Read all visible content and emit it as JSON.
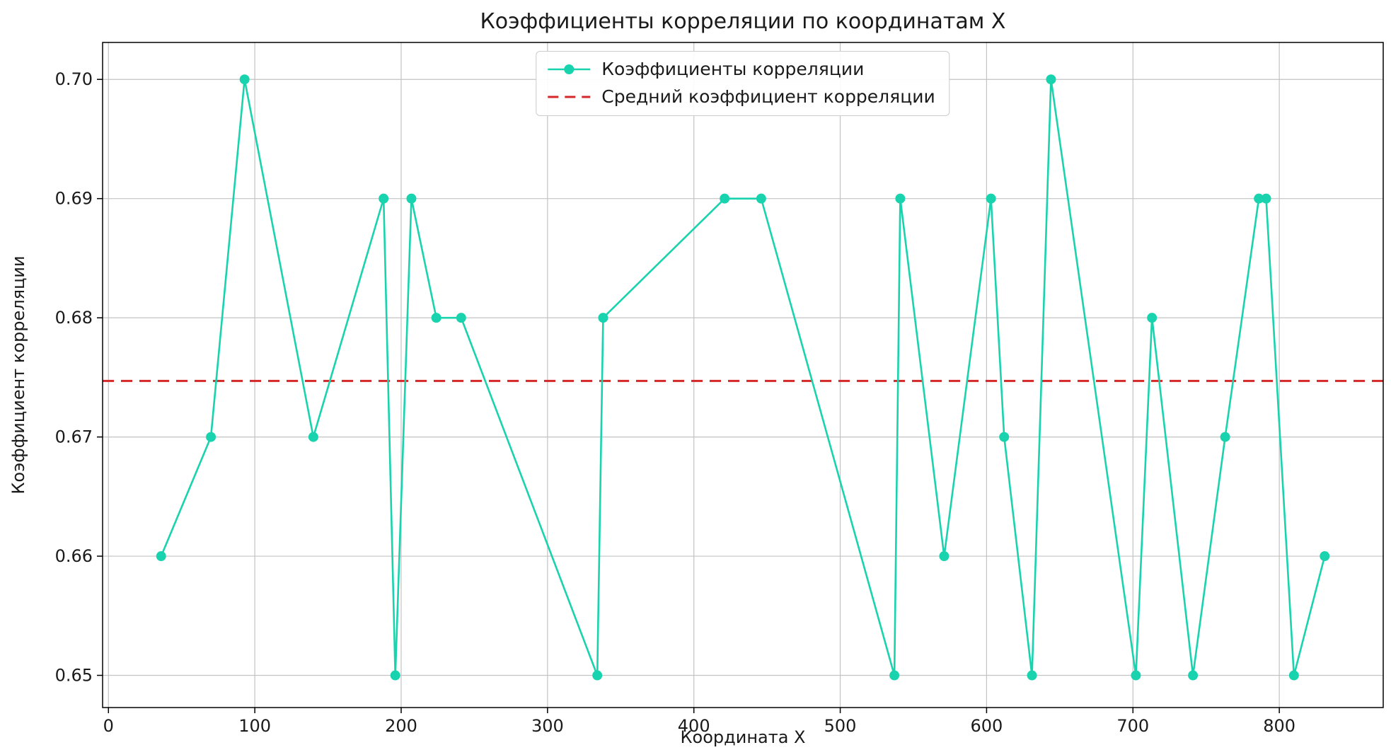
{
  "chart_data": {
    "type": "line",
    "title": "Коэффициенты корреляции по координатам X",
    "xlabel": "Координата X",
    "ylabel": "Коэффициент корреляции",
    "xlim": [
      -4,
      871
    ],
    "ylim": [
      0.6473,
      0.7031
    ],
    "xticks": [
      0,
      100,
      200,
      300,
      400,
      500,
      600,
      700,
      800
    ],
    "yticks": [
      0.65,
      0.66,
      0.67,
      0.68,
      0.69,
      0.7
    ],
    "ytick_labels": [
      "0.65",
      "0.66",
      "0.67",
      "0.68",
      "0.69",
      "0.70"
    ],
    "grid": true,
    "grid_color": "#c3c3c3",
    "legend": {
      "position": "upper center",
      "entries": [
        {
          "label": "Коэффициенты корреляции",
          "type": "line-marker"
        },
        {
          "label": "Средний коэффициент корреляции",
          "type": "dashed-line"
        }
      ]
    },
    "series": [
      {
        "name": "Коэффициенты корреляции",
        "color": "#19d3ae",
        "marker": "circle",
        "x": [
          36,
          70,
          93,
          140,
          188,
          196,
          207,
          224,
          241,
          334,
          338,
          421,
          446,
          537,
          541,
          571,
          603,
          612,
          631,
          644,
          702,
          713,
          741,
          763,
          786,
          791,
          810,
          831
        ],
        "y": [
          0.66,
          0.67,
          0.7,
          0.67,
          0.69,
          0.65,
          0.69,
          0.68,
          0.68,
          0.65,
          0.68,
          0.69,
          0.69,
          0.65,
          0.69,
          0.66,
          0.69,
          0.67,
          0.65,
          0.7,
          0.65,
          0.68,
          0.65,
          0.67,
          0.69,
          0.69,
          0.65,
          0.66
        ]
      }
    ],
    "mean_line": {
      "name": "Средний коэффициент корреляции",
      "color": "#d62728",
      "style": "dashed",
      "value": 0.6747
    }
  }
}
